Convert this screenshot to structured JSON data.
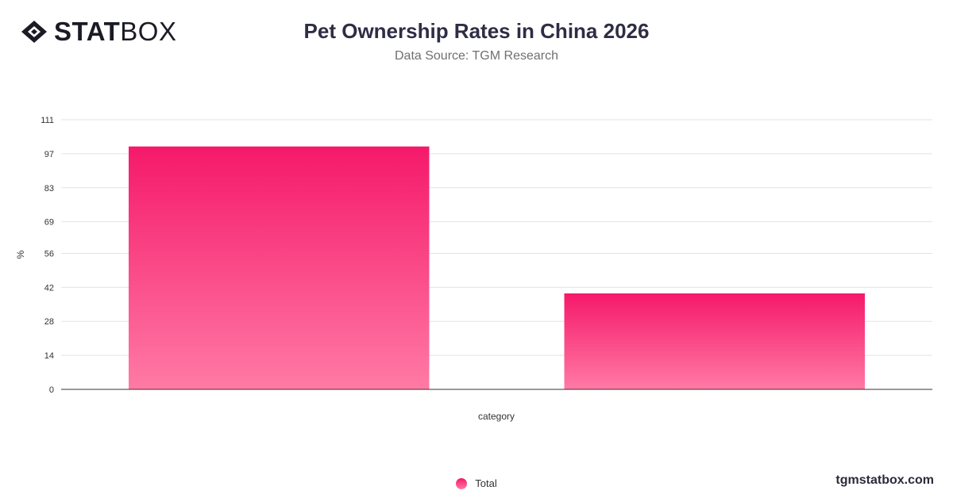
{
  "brand": {
    "logo_strong": "STAT",
    "logo_light": "BOX",
    "website": "tgmstatbox.com"
  },
  "chart_data": {
    "type": "bar",
    "title": "Pet Ownership Rates in China 2026",
    "subtitle": "Data Source: TGM Research",
    "xlabel": "category",
    "ylabel": "%",
    "ylim": [
      0,
      111
    ],
    "yticks": [
      0,
      14,
      28,
      42,
      56,
      69,
      83,
      97,
      111
    ],
    "categories": [
      "",
      ""
    ],
    "series": [
      {
        "name": "Total",
        "values": [
          100,
          39.5
        ]
      }
    ],
    "grid": true,
    "legend": "bottom-center",
    "colors": {
      "bar_top": "#f5196a",
      "bar_bottom": "#ff7aa5",
      "grid": "#e3e3e3",
      "axis": "#333333"
    }
  }
}
